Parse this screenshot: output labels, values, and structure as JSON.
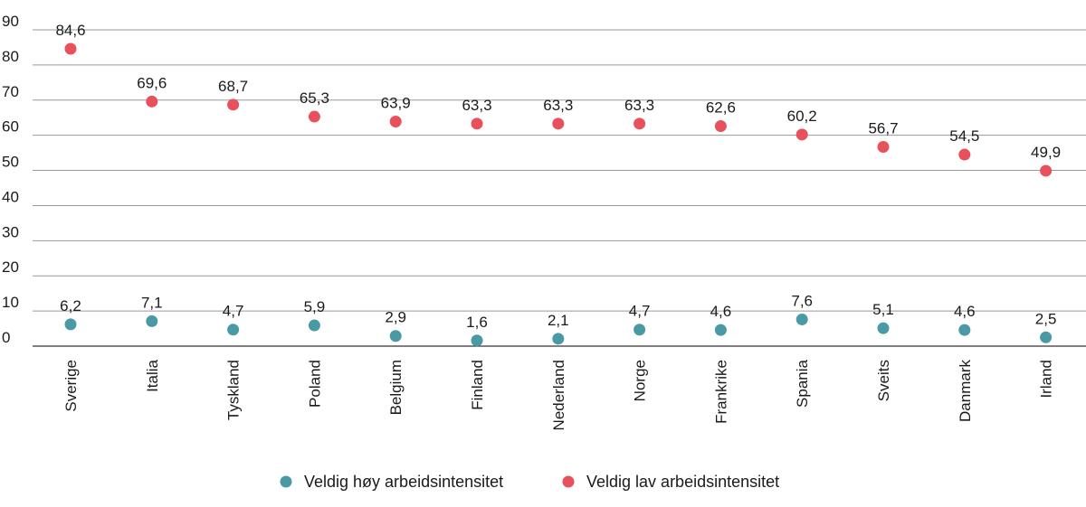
{
  "chart_data": {
    "type": "scatter",
    "title": "",
    "xlabel": "",
    "ylabel": "",
    "ylim": [
      0,
      90
    ],
    "yticks": [
      0,
      10,
      20,
      30,
      40,
      50,
      60,
      70,
      80,
      90
    ],
    "grid": true,
    "legend_position": "bottom",
    "categories": [
      "Sverige",
      "Italia",
      "Tyskland",
      "Poland",
      "Belgium",
      "Finland",
      "Nederland",
      "Norge",
      "Frankrike",
      "Spania",
      "Sveits",
      "Danmark",
      "Irland"
    ],
    "series": [
      {
        "name": "Veldig høy arbeidsintensitet",
        "color": "#4a9aa6",
        "values": [
          6.2,
          7.1,
          4.7,
          5.9,
          2.9,
          1.6,
          2.1,
          4.7,
          4.6,
          7.6,
          5.1,
          4.6,
          2.5
        ],
        "labels": [
          "6,2",
          "7,1",
          "4,7",
          "5,9",
          "2,9",
          "1,6",
          "2,1",
          "4,7",
          "4,6",
          "7,6",
          "5,1",
          "4,6",
          "2,5"
        ]
      },
      {
        "name": "Veldig lav arbeidsintensitet",
        "color": "#e8505b",
        "values": [
          84.6,
          69.6,
          68.7,
          65.3,
          63.9,
          63.3,
          63.3,
          63.3,
          62.6,
          60.2,
          56.7,
          54.5,
          49.9
        ],
        "labels": [
          "84,6",
          "69,6",
          "68,7",
          "65,3",
          "63,9",
          "63,3",
          "63,3",
          "63,3",
          "62,6",
          "60,2",
          "56,7",
          "54,5",
          "49,9"
        ]
      }
    ]
  }
}
